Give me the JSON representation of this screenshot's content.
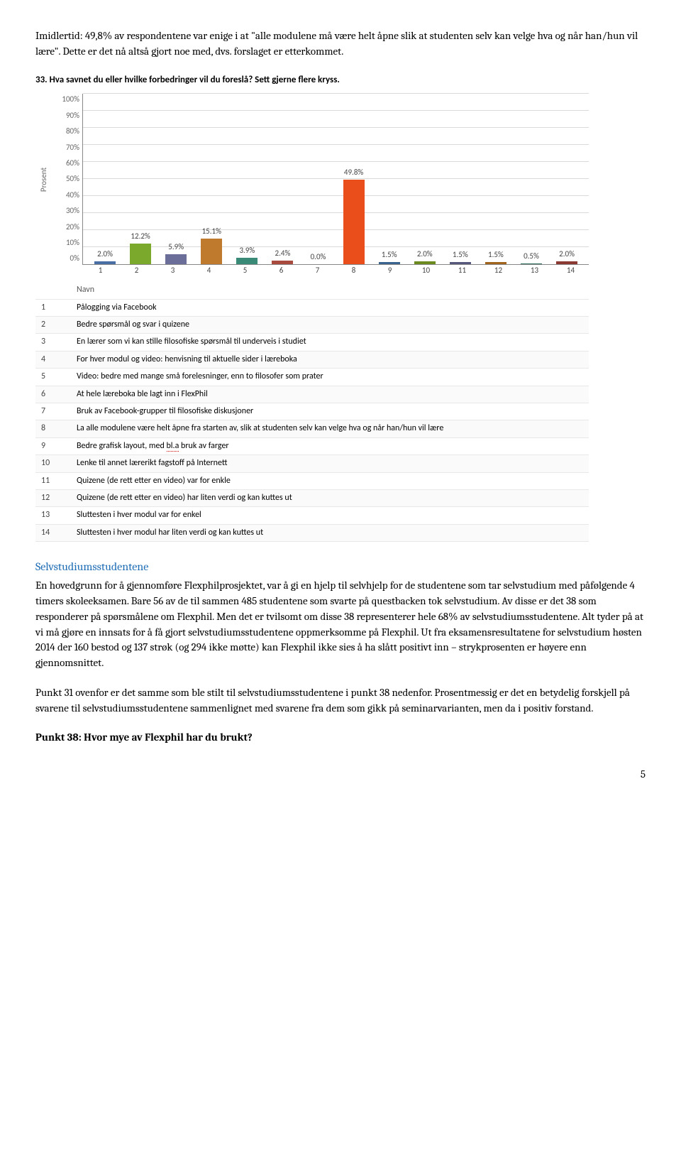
{
  "intro_para": "Imidlertid: 49,8% av respondentene var enige i at \"alle modulene må være helt åpne slik at studenten selv kan velge hva og når han/hun vil lære\". Dette er det nå altså gjort noe med, dvs. forslaget er etterkommet.",
  "chart": {
    "title_prefix": "33. ",
    "title": "Hva savnet du eller hvilke forbedringer vil du foreslå? Sett gjerne flere kryss.",
    "y_label": "Prosent",
    "y_ticks": [
      "100%",
      "90%",
      "80%",
      "70%",
      "60%",
      "50%",
      "40%",
      "30%",
      "20%",
      "10%",
      "0%"
    ],
    "ylim_max": 100,
    "bars": [
      {
        "x": "1",
        "v": 2.0,
        "label": "2.0%",
        "color": "#4a6fa5"
      },
      {
        "x": "2",
        "v": 12.2,
        "label": "12.2%",
        "color": "#7aa92b"
      },
      {
        "x": "3",
        "v": 5.9,
        "label": "5.9%",
        "color": "#6b6e99"
      },
      {
        "x": "4",
        "v": 15.1,
        "label": "15.1%",
        "color": "#c07a2d"
      },
      {
        "x": "5",
        "v": 3.9,
        "label": "3.9%",
        "color": "#3a8a78"
      },
      {
        "x": "6",
        "v": 2.4,
        "label": "2.4%",
        "color": "#a84a3e"
      },
      {
        "x": "7",
        "v": 0.0,
        "label": "0.0%",
        "color": "#8e5aa0"
      },
      {
        "x": "8",
        "v": 49.8,
        "label": "49.8%",
        "color": "#e94e1b"
      },
      {
        "x": "9",
        "v": 1.5,
        "label": "1.5%",
        "color": "#3a648e"
      },
      {
        "x": "10",
        "v": 2.0,
        "label": "2.0%",
        "color": "#6b8a1f"
      },
      {
        "x": "11",
        "v": 1.5,
        "label": "1.5%",
        "color": "#55587a"
      },
      {
        "x": "12",
        "v": 1.5,
        "label": "1.5%",
        "color": "#a0641f"
      },
      {
        "x": "13",
        "v": 0.5,
        "label": "0.5%",
        "color": "#2f6d5e"
      },
      {
        "x": "14",
        "v": 2.0,
        "label": "2.0%",
        "color": "#8a3a32"
      }
    ]
  },
  "legend": {
    "head_num": "",
    "head_name": "Navn",
    "rows": [
      {
        "n": "1",
        "t": "Pålogging via Facebook"
      },
      {
        "n": "2",
        "t": "Bedre spørsmål og svar i quizene"
      },
      {
        "n": "3",
        "t": "En lærer som vi kan stille filosofiske spørsmål til underveis i studiet"
      },
      {
        "n": "4",
        "t": "For hver modul og video: henvisning til aktuelle sider i læreboka"
      },
      {
        "n": "5",
        "t": "Video: bedre med mange små forelesninger, enn to filosofer som prater"
      },
      {
        "n": "6",
        "t": "At hele læreboka ble lagt inn i FlexPhil"
      },
      {
        "n": "7",
        "t": "Bruk av Facebook-grupper til filosofiske diskusjoner"
      },
      {
        "n": "8",
        "t": "La alle modulene være helt åpne fra starten av, slik at studenten selv kan velge hva og når han/hun vil lære"
      },
      {
        "n": "9",
        "t": "Bedre grafisk layout, med bl.a bruk av farger",
        "redund": true
      },
      {
        "n": "10",
        "t": "Lenke til annet lærerikt fagstoff på Internett"
      },
      {
        "n": "11",
        "t": "Quizene (de rett etter en video) var for enkle"
      },
      {
        "n": "12",
        "t": "Quizene (de rett etter en video) har liten verdi og kan kuttes ut"
      },
      {
        "n": "13",
        "t": "Sluttesten i hver modul var for enkel"
      },
      {
        "n": "14",
        "t": "Sluttesten i hver modul har liten verdi og kan kuttes ut"
      }
    ]
  },
  "section_heading": "Selvstudiumsstudentene",
  "body_para1": "En hovedgrunn for å gjennomføre Flexphilprosjektet, var å gi en hjelp til selvhjelp for de studentene som tar selvstudium med påfølgende 4 timers skoleeksamen. Bare 56 av de til sammen 485 studentene som svarte på questbacken tok selvstudium. Av disse er det 38 som responderer på spørsmålene om Flexphil. Men det er tvilsomt om disse 38 representerer hele 68% av selvstudiumsstudentene. Alt tyder på at vi må gjøre en innsats for å få gjort selvstudiumsstudentene oppmerksomme på Flexphil. Ut fra eksamensresultatene for selvstudium høsten 2014  der 160 bestod og 137 strøk (og 294 ikke møtte) kan Flexphil  ikke sies å ha slått positivt inn – strykprosenten er høyere enn gjennomsnittet.",
  "body_para2": "Punkt 31 ovenfor er det samme som ble stilt til selvstudiumsstudentene i punkt 38 nedenfor. Prosentmessig er det en betydelig forskjell på svarene til selvstudiumsstudentene sammenlignet med svarene fra dem som gikk på seminarvarianten, men da i positiv forstand.",
  "closing_bold": "Punkt 38: Hvor mye av Flexphil har du brukt?",
  "page_number": "5"
}
